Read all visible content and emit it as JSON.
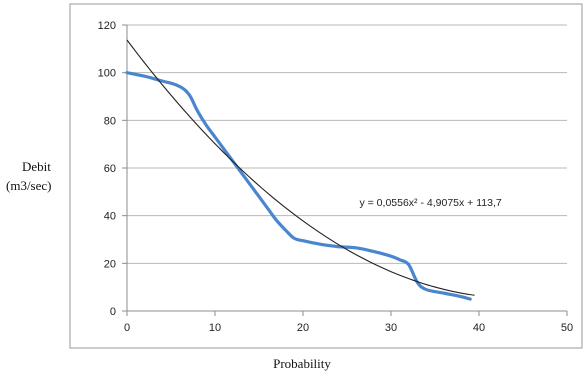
{
  "chart_data": {
    "type": "line",
    "title": "",
    "xlabel": "Probability",
    "ylabel_lines": [
      "Debit",
      "(m3/sec)"
    ],
    "xlim": [
      0,
      50
    ],
    "ylim": [
      0,
      120
    ],
    "xticks": [
      0,
      10,
      20,
      30,
      40,
      50
    ],
    "yticks": [
      0,
      20,
      40,
      60,
      80,
      100,
      120
    ],
    "grid": "horizontal",
    "legend": "none",
    "series": [
      {
        "kind": "observed",
        "color": "#4a86d0",
        "x": [
          0,
          2,
          4,
          5.5,
          6.5,
          7.2,
          8,
          9,
          10,
          11,
          12,
          13,
          14,
          15,
          16,
          17,
          18,
          19,
          20,
          22,
          24,
          26,
          28,
          30,
          31,
          32,
          33,
          34,
          36,
          38,
          39
        ],
        "y": [
          100,
          98.5,
          96.5,
          95,
          93,
          90,
          84,
          78,
          73,
          68,
          63,
          58,
          53,
          48,
          43,
          38,
          34,
          30.5,
          29.5,
          28,
          27,
          26.5,
          25,
          23,
          21.5,
          19.5,
          12,
          9,
          7.5,
          6,
          5
        ]
      },
      {
        "kind": "trendline",
        "color": "#222222",
        "type": "polynomial",
        "coefficients": [
          0.0556,
          -4.9075,
          113.7
        ],
        "x_range": [
          0,
          39.5
        ]
      }
    ],
    "annotations": [
      {
        "text": "y = 0,0556x² - 4,9075x + 113,7",
        "x": 34.5,
        "y": 44
      }
    ]
  }
}
